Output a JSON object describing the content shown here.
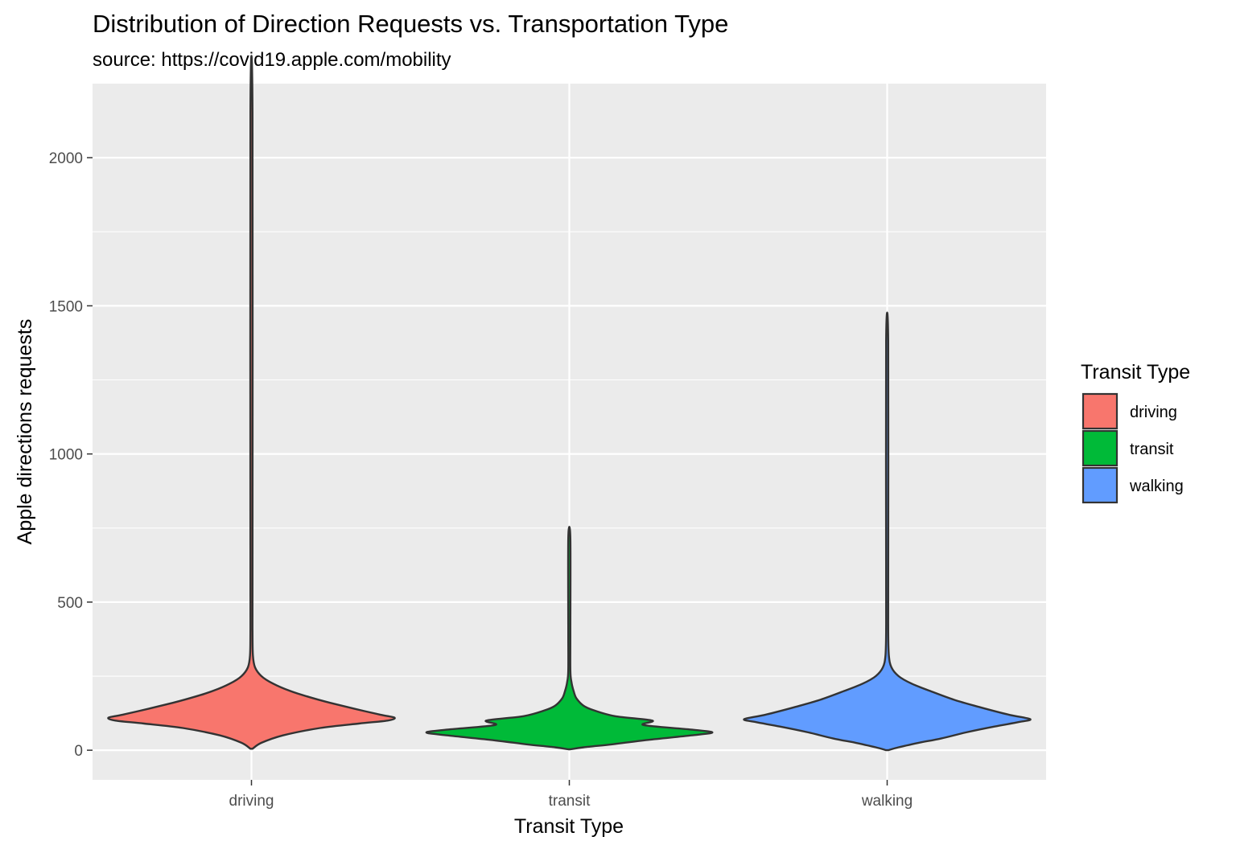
{
  "chart_data": {
    "type": "violin",
    "title": "Distribution of Direction Requests vs. Transportation Type",
    "subtitle": "source: https://covid19.apple.com/mobility",
    "xlabel": "Transit Type",
    "ylabel": "Apple directions requests",
    "categories": [
      "driving",
      "transit",
      "walking"
    ],
    "yticks": [
      0,
      500,
      1000,
      1500,
      2000
    ],
    "ylim": [
      -100,
      2250
    ],
    "grid": true,
    "legend": {
      "title": "Transit Type",
      "position": "right",
      "entries": [
        "driving",
        "transit",
        "walking"
      ]
    },
    "series": [
      {
        "name": "driving",
        "color": "#F8766D",
        "min": 5,
        "max": 2150,
        "density_profile": [
          [
            5,
            0.0
          ],
          [
            25,
            0.07
          ],
          [
            50,
            0.22
          ],
          [
            75,
            0.48
          ],
          [
            90,
            0.75
          ],
          [
            100,
            0.95
          ],
          [
            110,
            1.0
          ],
          [
            120,
            0.9
          ],
          [
            140,
            0.72
          ],
          [
            160,
            0.55
          ],
          [
            180,
            0.4
          ],
          [
            200,
            0.27
          ],
          [
            225,
            0.15
          ],
          [
            250,
            0.07
          ],
          [
            280,
            0.025
          ],
          [
            320,
            0.01
          ],
          [
            400,
            0.003
          ],
          [
            600,
            0.002
          ],
          [
            2150,
            0.002
          ]
        ]
      },
      {
        "name": "transit",
        "color": "#00BA38",
        "min": 3,
        "max": 715,
        "density_profile": [
          [
            3,
            0.0
          ],
          [
            10,
            0.1
          ],
          [
            20,
            0.3
          ],
          [
            35,
            0.55
          ],
          [
            50,
            0.85
          ],
          [
            60,
            1.0
          ],
          [
            70,
            0.85
          ],
          [
            85,
            0.52
          ],
          [
            100,
            0.58
          ],
          [
            115,
            0.32
          ],
          [
            135,
            0.17
          ],
          [
            150,
            0.1
          ],
          [
            175,
            0.05
          ],
          [
            200,
            0.03
          ],
          [
            230,
            0.015
          ],
          [
            270,
            0.006
          ],
          [
            400,
            0.003
          ],
          [
            715,
            0.002
          ]
        ]
      },
      {
        "name": "walking",
        "color": "#619CFF",
        "min": 0,
        "max": 1380,
        "density_profile": [
          [
            0,
            0.0
          ],
          [
            10,
            0.08
          ],
          [
            25,
            0.22
          ],
          [
            40,
            0.38
          ],
          [
            60,
            0.55
          ],
          [
            80,
            0.75
          ],
          [
            95,
            0.92
          ],
          [
            105,
            1.0
          ],
          [
            120,
            0.85
          ],
          [
            145,
            0.65
          ],
          [
            170,
            0.47
          ],
          [
            200,
            0.3
          ],
          [
            225,
            0.17
          ],
          [
            250,
            0.08
          ],
          [
            280,
            0.03
          ],
          [
            320,
            0.012
          ],
          [
            400,
            0.004
          ],
          [
            600,
            0.002
          ],
          [
            1380,
            0.002
          ]
        ]
      }
    ]
  }
}
